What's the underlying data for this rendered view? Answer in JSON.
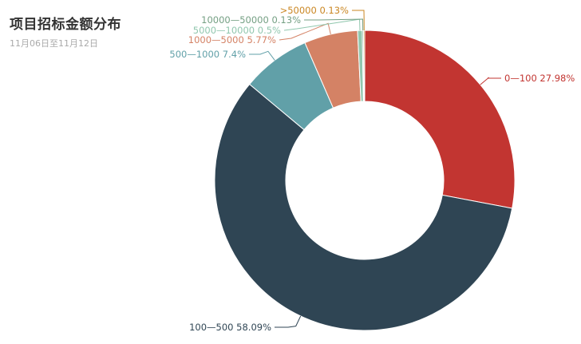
{
  "title": "项目招标金额分布",
  "subtitle": "11月06日至11月12日",
  "chart_data": {
    "type": "pie",
    "variant": "donut",
    "title": "项目招标金额分布",
    "subtitle": "11月06日至11月12日",
    "start_angle_deg": 90,
    "direction": "clockwise",
    "slices": [
      {
        "name": "0—100",
        "value": 27.98,
        "label": "0—100 27.98%",
        "color": "#c23531",
        "label_side": "right"
      },
      {
        "name": "100—500",
        "value": 58.09,
        "label": "100—500 58.09%",
        "color": "#2f4554",
        "label_side": "left"
      },
      {
        "name": "500—1000",
        "value": 7.4,
        "label": "500—1000 7.4%",
        "color": "#61a0a8",
        "label_side": "left"
      },
      {
        "name": "1000—5000",
        "value": 5.77,
        "label": "1000—5000 5.77%",
        "color": "#d48265",
        "label_side": "left"
      },
      {
        "name": "5000—10000",
        "value": 0.5,
        "label": "5000—10000 0.5%",
        "color": "#91c7ae",
        "label_side": "left"
      },
      {
        "name": "10000—50000",
        "value": 0.13,
        "label": "10000—50000 0.13%",
        "color": "#749f83",
        "label_side": "left"
      },
      {
        "name": ">50000",
        "value": 0.13,
        "label": ">50000 0.13%",
        "color": "#ca8622",
        "label_side": "left"
      }
    ]
  }
}
